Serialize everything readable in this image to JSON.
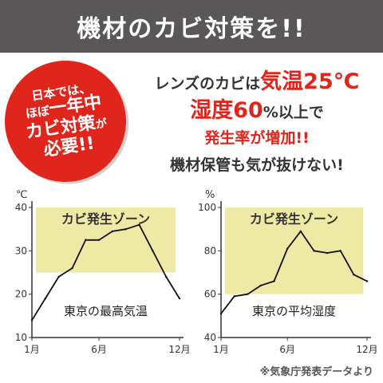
{
  "header": {
    "title": "機材のカビ対策を!!"
  },
  "badge": {
    "line1": "日本では、",
    "line2_small": "ほぼ",
    "line2_big": "一年中",
    "line3_big": "カビ対策",
    "line3_small": "が",
    "line4": "必要!!"
  },
  "message": {
    "line1_prefix": "レンズのカビは",
    "line1_highlight": "気温25℃",
    "line2_highlight": "湿度60",
    "line2_suffix": "%以上で",
    "line3": "発生率が増加!!",
    "line4": "機材保管も気が抜けない!"
  },
  "colors": {
    "accent": "#e0261c",
    "banner": "#595757",
    "zone": "#eeeaa6"
  },
  "chart_data": [
    {
      "type": "line",
      "title": "東京の最高気温",
      "unit": "℃",
      "zone_label": "カビ発生ゾーン",
      "zone_range": [
        25,
        40
      ],
      "ylim": [
        10,
        40
      ],
      "yticks": [
        10,
        20,
        30,
        40
      ],
      "x": [
        1,
        2,
        3,
        4,
        5,
        6,
        7,
        8,
        9,
        10,
        11,
        12
      ],
      "xtick_labels": [
        {
          "x": 1,
          "label": "1月"
        },
        {
          "x": 6,
          "label": "6月"
        },
        {
          "x": 12,
          "label": "12月"
        }
      ],
      "values": [
        14,
        19,
        24,
        26,
        32.5,
        32.5,
        34.5,
        35,
        36,
        30,
        24,
        19
      ]
    },
    {
      "type": "line",
      "title": "東京の平均湿度",
      "unit": "%",
      "zone_label": "カビ発生ゾーン",
      "zone_range": [
        60,
        100
      ],
      "ylim": [
        40,
        100
      ],
      "yticks": [
        40,
        60,
        80,
        100
      ],
      "x": [
        1,
        2,
        3,
        4,
        5,
        6,
        7,
        8,
        9,
        10,
        11,
        12
      ],
      "xtick_labels": [
        {
          "x": 1,
          "label": "1月"
        },
        {
          "x": 6,
          "label": "6月"
        },
        {
          "x": 12,
          "label": "12月"
        }
      ],
      "values": [
        51,
        59,
        60,
        64,
        66,
        81,
        89,
        80,
        79,
        80,
        69,
        66
      ]
    }
  ],
  "footer": {
    "source": "※気象庁発表データより"
  }
}
